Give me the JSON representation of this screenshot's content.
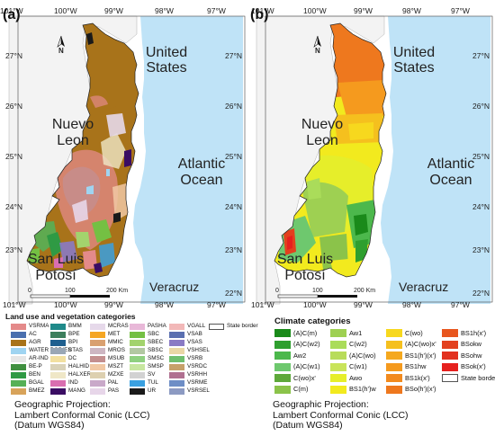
{
  "axes": {
    "lon": [
      "101°W",
      "100°W",
      "99°W",
      "98°W",
      "97°W"
    ],
    "lat": [
      "27°N",
      "26°N",
      "25°N",
      "24°N",
      "23°N",
      "22°N"
    ]
  },
  "places": {
    "us": "United States",
    "nl": "Nuevo Leon",
    "ocean": "Atlantic Ocean",
    "slp": "San Luis Potosí",
    "vc": "Veracruz"
  },
  "north_label": "N",
  "scale": {
    "t0": "0",
    "t1": "100",
    "t2": "200 Km"
  },
  "panel_a": {
    "label": "(a)",
    "legend_title": "Land use and vegetation categories",
    "legend": [
      {
        "code": "VSRMA",
        "color": "#e48a8a"
      },
      {
        "code": "AC",
        "color": "#4a6fae"
      },
      {
        "code": "AGR",
        "color": "#a8731a"
      },
      {
        "code": "WATER BODIES",
        "color": "#9fd4f1"
      },
      {
        "code": "AR-IND",
        "color": "#e6e6e6"
      },
      {
        "code": "BE-P",
        "color": "#3f8f3f"
      },
      {
        "code": "BEN",
        "color": "#2f9a44"
      },
      {
        "code": "BGAL",
        "color": "#56b056"
      },
      {
        "code": "BMEZ",
        "color": "#d8a35a"
      },
      {
        "code": "BMM",
        "color": "#1f8a8a"
      },
      {
        "code": "BPE",
        "color": "#3d7f5d"
      },
      {
        "code": "BPI",
        "color": "#1f5f8f"
      },
      {
        "code": "BTAS",
        "color": "#9aa7b5"
      },
      {
        "code": "DC",
        "color": "#f2e0a0"
      },
      {
        "code": "HALHID",
        "color": "#d9d2b8"
      },
      {
        "code": "HALXER",
        "color": "#efe7c7"
      },
      {
        "code": "IND",
        "color": "#d96eb0"
      },
      {
        "code": "MANG",
        "color": "#3a0d63"
      },
      {
        "code": "MCRAS",
        "color": "#e6d9ea"
      },
      {
        "code": "MET",
        "color": "#f5a623"
      },
      {
        "code": "MMIC",
        "color": "#d9a070"
      },
      {
        "code": "MROS",
        "color": "#cdb6c2"
      },
      {
        "code": "MSUB",
        "color": "#c48f8f"
      },
      {
        "code": "MSZT",
        "color": "#f1c8a4"
      },
      {
        "code": "MZXE",
        "color": "#ddd0b0"
      },
      {
        "code": "PAL",
        "color": "#c9a9c9"
      },
      {
        "code": "PAS",
        "color": "#e7d6e9"
      },
      {
        "code": "PASHA",
        "color": "#e8b8d8"
      },
      {
        "code": "SBC",
        "color": "#74c043"
      },
      {
        "code": "SBEC",
        "color": "#a3d36d"
      },
      {
        "code": "SBSC",
        "color": "#b2c8a2"
      },
      {
        "code": "SMSC",
        "color": "#8fd080"
      },
      {
        "code": "SMSP",
        "color": "#c7e6a0"
      },
      {
        "code": "SV",
        "color": "#d2d2d2"
      },
      {
        "code": "TUL",
        "color": "#3aa0e0"
      },
      {
        "code": "UR",
        "color": "#1a1a1a"
      },
      {
        "code": "VGALL",
        "color": "#f2b8b8"
      },
      {
        "code": "VSAB",
        "color": "#5a6fb0"
      },
      {
        "code": "VSAS",
        "color": "#8a7ac4"
      },
      {
        "code": "VSHSEL",
        "color": "#e9d7a6"
      },
      {
        "code": "VSRB",
        "color": "#6fbf6f"
      },
      {
        "code": "VSRDC",
        "color": "#c6a16a"
      },
      {
        "code": "VSRHH",
        "color": "#b07090"
      },
      {
        "code": "VSRME",
        "color": "#6e8ec6"
      },
      {
        "code": "VSRSEL",
        "color": "#8c9ac2"
      },
      {
        "code": "State border",
        "color": "#ffffff"
      }
    ],
    "projection": [
      "Geographic Projection:",
      "Lambert Conformal Conic (LCC)",
      "(Datum WGS84)"
    ]
  },
  "panel_b": {
    "label": "(b)",
    "legend_title": "Climate categories",
    "legend": [
      {
        "code": "(A)C(m)",
        "color": "#1a8a1a"
      },
      {
        "code": "(A)C(w2)",
        "color": "#2f9f2f"
      },
      {
        "code": "Aw2",
        "color": "#4cb84c"
      },
      {
        "code": "(A)C(w1)",
        "color": "#6ec86e"
      },
      {
        "code": "C(wo)x'",
        "color": "#5ea83a"
      },
      {
        "code": "C(m)",
        "color": "#8bc34a"
      },
      {
        "code": "Aw1",
        "color": "#9ed052"
      },
      {
        "code": "C(w2)",
        "color": "#aadc5a"
      },
      {
        "code": "(A)C(wo)",
        "color": "#b8dc5a"
      },
      {
        "code": "C(w1)",
        "color": "#c9e45a"
      },
      {
        "code": "Awo",
        "color": "#e6ee2a"
      },
      {
        "code": "BS1(h')w",
        "color": "#f2ea1e"
      },
      {
        "code": "C(wo)",
        "color": "#f7d81e"
      },
      {
        "code": "(A)C(wo)x'",
        "color": "#f5c01e"
      },
      {
        "code": "BS1(h')(x')",
        "color": "#f5a81e"
      },
      {
        "code": "BS1hw",
        "color": "#f59a1e"
      },
      {
        "code": "BS1k(x')",
        "color": "#f28a1e"
      },
      {
        "code": "BSo(h')(x')",
        "color": "#ee781e"
      },
      {
        "code": "BS1h(x')",
        "color": "#e8561e"
      },
      {
        "code": "BSokw",
        "color": "#e3401e"
      },
      {
        "code": "BSohw",
        "color": "#e2301e"
      },
      {
        "code": "BSok(x')",
        "color": "#e6201e"
      },
      {
        "code": "State border",
        "color": "#ffffff"
      }
    ],
    "projection": [
      "Geographic Projection:",
      "Lambert Conformal Conic (LCC)",
      "(Datum WGS84)"
    ]
  }
}
